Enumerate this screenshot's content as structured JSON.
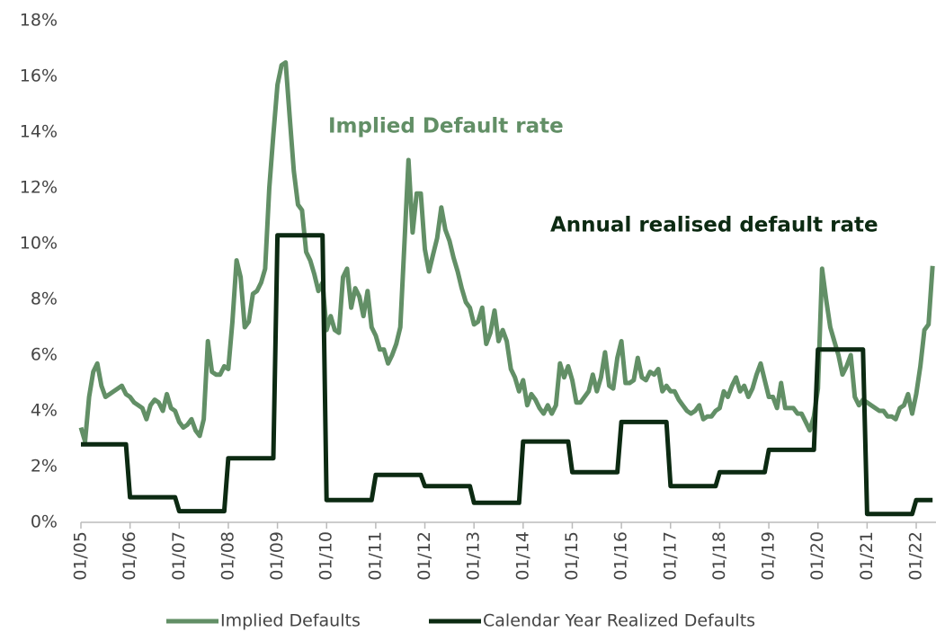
{
  "chart_data": {
    "type": "line",
    "annotations": [
      "Implied Default rate",
      "Annual realised default rate"
    ],
    "categories": [
      "01/05",
      null,
      null,
      null,
      null,
      null,
      null,
      null,
      null,
      null,
      null,
      null,
      "01/06",
      null,
      null,
      null,
      null,
      null,
      null,
      null,
      null,
      null,
      null,
      null,
      "01/07",
      null,
      null,
      null,
      null,
      null,
      null,
      null,
      null,
      null,
      null,
      null,
      "01/08",
      null,
      null,
      null,
      null,
      null,
      null,
      null,
      null,
      null,
      null,
      null,
      "01/09",
      null,
      null,
      null,
      null,
      null,
      null,
      null,
      null,
      null,
      null,
      null,
      "01/10",
      null,
      null,
      null,
      null,
      null,
      null,
      null,
      null,
      null,
      null,
      null,
      "01/11",
      null,
      null,
      null,
      null,
      null,
      null,
      null,
      null,
      null,
      null,
      null,
      "01/12",
      null,
      null,
      null,
      null,
      null,
      null,
      null,
      null,
      null,
      null,
      null,
      "01/13",
      null,
      null,
      null,
      null,
      null,
      null,
      null,
      null,
      null,
      null,
      null,
      "01/14",
      null,
      null,
      null,
      null,
      null,
      null,
      null,
      null,
      null,
      null,
      null,
      "01/15",
      null,
      null,
      null,
      null,
      null,
      null,
      null,
      null,
      null,
      null,
      null,
      "01/16",
      null,
      null,
      null,
      null,
      null,
      null,
      null,
      null,
      null,
      null,
      null,
      "01/17",
      null,
      null,
      null,
      null,
      null,
      null,
      null,
      null,
      null,
      null,
      null,
      "01/18",
      null,
      null,
      null,
      null,
      null,
      null,
      null,
      null,
      null,
      null,
      null,
      "01/19",
      null,
      null,
      null,
      null,
      null,
      null,
      null,
      null,
      null,
      null,
      null,
      "01/20",
      null,
      null,
      null,
      null,
      null,
      null,
      null,
      null,
      null,
      null,
      null,
      "01/21",
      null,
      null,
      null,
      null,
      null,
      null,
      null,
      null,
      null,
      null,
      null,
      "01/22",
      null,
      null,
      null,
      null
    ],
    "series": [
      {
        "name": "Implied Defaults",
        "color": "#628f66",
        "values": [
          3.4,
          2.9,
          4.5,
          5.4,
          5.7,
          4.9,
          4.5,
          4.6,
          4.7,
          4.8,
          4.9,
          4.6,
          4.5,
          4.3,
          4.2,
          4.1,
          3.7,
          4.2,
          4.4,
          4.3,
          4.0,
          4.6,
          4.1,
          4.0,
          3.6,
          3.4,
          3.5,
          3.7,
          3.3,
          3.1,
          3.7,
          6.5,
          5.4,
          5.3,
          5.3,
          5.6,
          5.5,
          7.2,
          9.4,
          8.8,
          7.0,
          7.2,
          8.2,
          8.3,
          8.6,
          9.1,
          12.0,
          13.9,
          15.7,
          16.4,
          16.5,
          14.5,
          12.6,
          11.4,
          11.2,
          9.7,
          9.4,
          8.9,
          8.3,
          8.6,
          6.9,
          7.4,
          6.9,
          6.8,
          8.8,
          9.1,
          7.7,
          8.4,
          8.1,
          7.4,
          8.3,
          7.0,
          6.7,
          6.2,
          6.2,
          5.7,
          6.0,
          6.4,
          7.0,
          10.0,
          13.0,
          10.4,
          11.8,
          11.8,
          9.8,
          9.0,
          9.6,
          10.2,
          11.3,
          10.5,
          10.1,
          9.5,
          9.0,
          8.4,
          7.9,
          7.7,
          7.1,
          7.2,
          7.7,
          6.4,
          6.8,
          7.6,
          6.5,
          6.9,
          6.5,
          5.5,
          5.2,
          4.7,
          5.1,
          4.2,
          4.6,
          4.4,
          4.1,
          3.9,
          4.2,
          3.9,
          4.2,
          5.7,
          5.2,
          5.6,
          5.1,
          4.3,
          4.3,
          4.5,
          4.7,
          5.3,
          4.7,
          5.2,
          6.1,
          4.9,
          4.8,
          5.9,
          6.5,
          5.0,
          5.0,
          5.1,
          5.9,
          5.2,
          5.1,
          5.4,
          5.3,
          5.5,
          4.7,
          4.9,
          4.7,
          4.7,
          4.4,
          4.2,
          4.0,
          3.9,
          4.0,
          4.2,
          3.7,
          3.8,
          3.8,
          4.0,
          4.1,
          4.7,
          4.5,
          4.9,
          5.2,
          4.7,
          4.9,
          4.5,
          4.8,
          5.3,
          5.7,
          5.1,
          4.5,
          4.5,
          4.1,
          5.0,
          4.1,
          4.1,
          4.1,
          3.9,
          3.9,
          3.6,
          3.3,
          3.8,
          4.8,
          9.1,
          8.0,
          7.0,
          6.5,
          6.0,
          5.3,
          5.6,
          6.0,
          4.5,
          4.2,
          4.4,
          4.3,
          4.2,
          4.1,
          4.0,
          4.0,
          3.8,
          3.8,
          3.7,
          4.1,
          4.2,
          4.6,
          3.9,
          4.6,
          5.6,
          6.9,
          7.1,
          9.2
        ]
      },
      {
        "name": "Calendar Year Realized Defaults",
        "color": "#0c2a12",
        "values": [
          2.8,
          2.8,
          2.8,
          2.8,
          2.8,
          2.8,
          2.8,
          2.8,
          2.8,
          2.8,
          2.8,
          2.8,
          0.9,
          0.9,
          0.9,
          0.9,
          0.9,
          0.9,
          0.9,
          0.9,
          0.9,
          0.9,
          0.9,
          0.9,
          0.4,
          0.4,
          0.4,
          0.4,
          0.4,
          0.4,
          0.4,
          0.4,
          0.4,
          0.4,
          0.4,
          0.4,
          2.3,
          2.3,
          2.3,
          2.3,
          2.3,
          2.3,
          2.3,
          2.3,
          2.3,
          2.3,
          2.3,
          2.3,
          10.3,
          10.3,
          10.3,
          10.3,
          10.3,
          10.3,
          10.3,
          10.3,
          10.3,
          10.3,
          10.3,
          10.3,
          0.8,
          0.8,
          0.8,
          0.8,
          0.8,
          0.8,
          0.8,
          0.8,
          0.8,
          0.8,
          0.8,
          0.8,
          1.7,
          1.7,
          1.7,
          1.7,
          1.7,
          1.7,
          1.7,
          1.7,
          1.7,
          1.7,
          1.7,
          1.7,
          1.3,
          1.3,
          1.3,
          1.3,
          1.3,
          1.3,
          1.3,
          1.3,
          1.3,
          1.3,
          1.3,
          1.3,
          0.7,
          0.7,
          0.7,
          0.7,
          0.7,
          0.7,
          0.7,
          0.7,
          0.7,
          0.7,
          0.7,
          0.7,
          2.9,
          2.9,
          2.9,
          2.9,
          2.9,
          2.9,
          2.9,
          2.9,
          2.9,
          2.9,
          2.9,
          2.9,
          1.8,
          1.8,
          1.8,
          1.8,
          1.8,
          1.8,
          1.8,
          1.8,
          1.8,
          1.8,
          1.8,
          1.8,
          3.6,
          3.6,
          3.6,
          3.6,
          3.6,
          3.6,
          3.6,
          3.6,
          3.6,
          3.6,
          3.6,
          3.6,
          1.3,
          1.3,
          1.3,
          1.3,
          1.3,
          1.3,
          1.3,
          1.3,
          1.3,
          1.3,
          1.3,
          1.3,
          1.8,
          1.8,
          1.8,
          1.8,
          1.8,
          1.8,
          1.8,
          1.8,
          1.8,
          1.8,
          1.8,
          1.8,
          2.6,
          2.6,
          2.6,
          2.6,
          2.6,
          2.6,
          2.6,
          2.6,
          2.6,
          2.6,
          2.6,
          2.6,
          6.2,
          6.2,
          6.2,
          6.2,
          6.2,
          6.2,
          6.2,
          6.2,
          6.2,
          6.2,
          6.2,
          6.2,
          0.3,
          0.3,
          0.3,
          0.3,
          0.3,
          0.3,
          0.3,
          0.3,
          0.3,
          0.3,
          0.3,
          0.3,
          0.8,
          0.8,
          0.8,
          0.8,
          0.8
        ]
      }
    ],
    "ylim": [
      0,
      18
    ],
    "yticks": [
      {
        "value": 0,
        "label": "0%"
      },
      {
        "value": 2,
        "label": "2%"
      },
      {
        "value": 4,
        "label": "4%"
      },
      {
        "value": 6,
        "label": "6%"
      },
      {
        "value": 8,
        "label": "8%"
      },
      {
        "value": 10,
        "label": "10%"
      },
      {
        "value": 12,
        "label": "12%"
      },
      {
        "value": 14,
        "label": "14%"
      },
      {
        "value": 16,
        "label": "16%"
      },
      {
        "value": 18,
        "label": "18%"
      }
    ],
    "grid": false,
    "legend": "bottom"
  }
}
